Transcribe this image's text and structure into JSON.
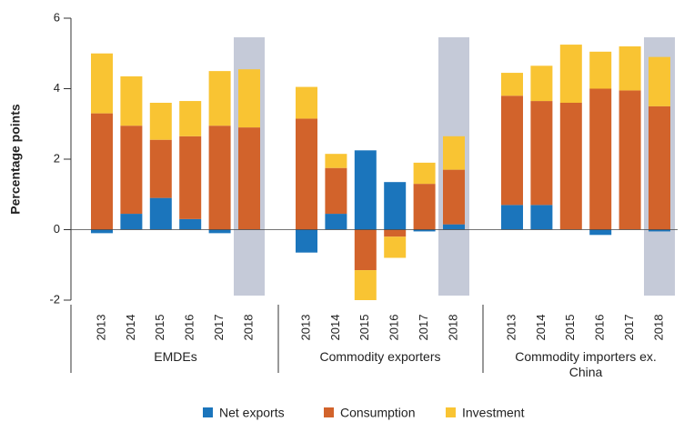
{
  "chart_data": {
    "type": "stacked_bar",
    "y_label": "Percentage points",
    "categories": [
      "2013",
      "2014",
      "2015",
      "2016",
      "2017",
      "2018",
      "2013",
      "2014",
      "2015",
      "2016",
      "2017",
      "2018",
      "2013",
      "2014",
      "2015",
      "2016",
      "2017",
      "2018"
    ],
    "group_labels": [
      "EMDEs",
      "Commodity exporters",
      "Commodity importers ex. China"
    ],
    "highlight_category": "2018",
    "highlight_color": "#c5cad8",
    "series": [
      {
        "name": "Net exports",
        "color": "#1b75bc",
        "values": [
          -0.1,
          0.45,
          0.9,
          0.3,
          -0.1,
          0,
          -0.65,
          0.45,
          2.25,
          1.35,
          -0.05,
          0.15,
          0.7,
          0.7,
          0,
          -0.15,
          0,
          -0.05
        ]
      },
      {
        "name": "Consumption",
        "color": "#d2632b",
        "values": [
          3.3,
          2.5,
          1.65,
          2.35,
          2.95,
          2.9,
          3.15,
          1.3,
          -1.15,
          -0.2,
          1.3,
          1.55,
          3.1,
          2.95,
          3.6,
          4.0,
          3.95,
          3.5
        ]
      },
      {
        "name": "Investment",
        "color": "#f9c433",
        "values": [
          1.7,
          1.4,
          1.05,
          1.0,
          1.55,
          1.65,
          0.9,
          0.4,
          -0.85,
          -0.6,
          0.6,
          0.95,
          0.65,
          1.0,
          1.65,
          1.05,
          1.25,
          1.4
        ]
      }
    ],
    "ylim": [
      -2,
      6
    ],
    "yticks": [
      -2,
      0,
      2,
      4,
      6
    ]
  }
}
